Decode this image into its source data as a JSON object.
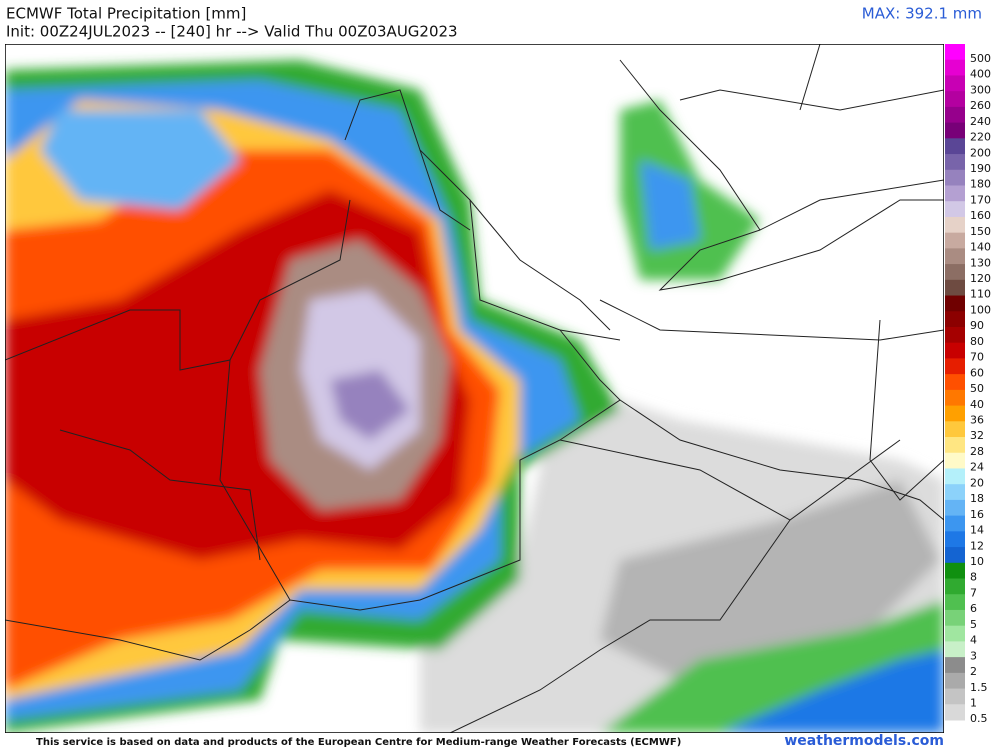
{
  "header": {
    "title": "ECMWF Total Precipitation [mm]",
    "subtitle": "Init: 00Z24JUL2023 -- [240] hr --> Valid Thu 00Z03AUG2023",
    "max_label": "MAX: 392.1 mm"
  },
  "colorbar": {
    "levels": [
      500,
      400,
      300,
      260,
      240,
      220,
      200,
      190,
      180,
      170,
      160,
      150,
      140,
      130,
      120,
      110,
      100,
      90,
      80,
      70,
      60,
      50,
      40,
      36,
      32,
      28,
      24,
      20,
      18,
      16,
      14,
      12,
      10,
      8,
      7,
      6,
      5,
      4,
      3,
      2,
      1.5,
      1,
      0.5
    ],
    "colors": [
      "#ff00ff",
      "#e600d2",
      "#c800b4",
      "#b400a0",
      "#96008c",
      "#780078",
      "#5a4696",
      "#7864aa",
      "#9682be",
      "#b4a0d2",
      "#d2c8e6",
      "#e6d2c8",
      "#c8aaa0",
      "#aa8c82",
      "#8c6e64",
      "#6e4b41",
      "#700000",
      "#8c0000",
      "#a50000",
      "#c80000",
      "#e61e00",
      "#ff5000",
      "#ff7800",
      "#ffa000",
      "#ffc83c",
      "#ffe682",
      "#fffac8",
      "#b4f0fa",
      "#8cd2fa",
      "#64b4f5",
      "#3c96f0",
      "#1e78e6",
      "#1464d2",
      "#109010",
      "#30aa30",
      "#50c050",
      "#78d278",
      "#a0e6a0",
      "#c8f0c8",
      "#8c8c8c",
      "#aaaaaa",
      "#c4c4c4",
      "#d9d9d9"
    ]
  },
  "footer": {
    "credit": "This service is based on data and products of the European Centre for Medium-range Weather Forecasts (ECMWF)",
    "site": "weathermodels.com"
  }
}
